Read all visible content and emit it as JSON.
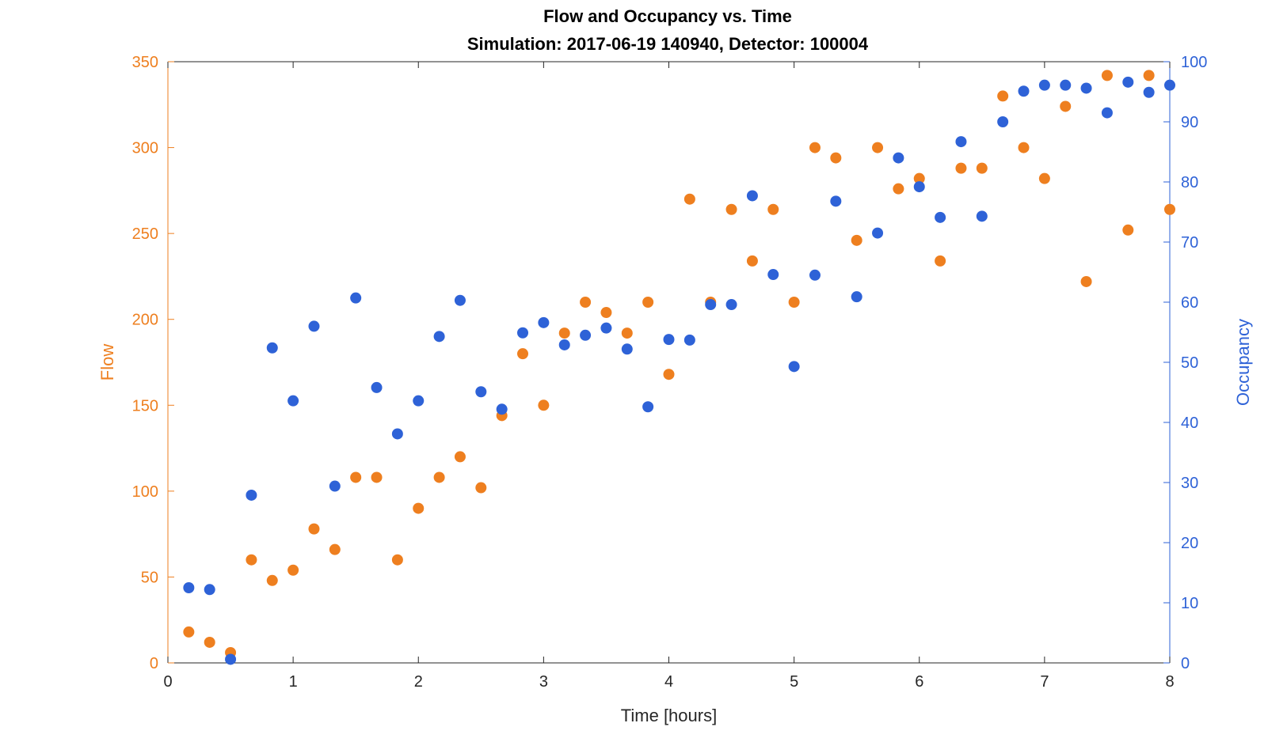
{
  "chart_data": {
    "type": "scatter",
    "title": "Flow and Occupancy vs. Time",
    "subtitle": "Simulation:  2017-06-19 140940,  Detector:  100004",
    "xlabel": "Time [hours]",
    "ylabel_left": "Flow",
    "ylabel_right": "Occupancy",
    "xlim": [
      0,
      8
    ],
    "ylim_left": [
      0,
      350
    ],
    "ylim_right": [
      0,
      100
    ],
    "x_ticks": [
      "0",
      "1",
      "2",
      "3",
      "4",
      "5",
      "6",
      "7",
      "8"
    ],
    "y_left_ticks": [
      "0",
      "50",
      "100",
      "150",
      "200",
      "250",
      "300",
      "350"
    ],
    "y_right_ticks": [
      "0",
      "10",
      "20",
      "30",
      "40",
      "50",
      "60",
      "70",
      "80",
      "90",
      "100"
    ],
    "grid": false,
    "x": [
      0.1667,
      0.3333,
      0.5,
      0.6667,
      0.8333,
      1.0,
      1.1667,
      1.3333,
      1.5,
      1.6667,
      1.8333,
      2.0,
      2.1667,
      2.3333,
      2.5,
      2.6667,
      2.8333,
      3.0,
      3.1667,
      3.3333,
      3.5,
      3.6667,
      3.8333,
      4.0,
      4.1667,
      4.3333,
      4.5,
      4.6667,
      4.8333,
      5.0,
      5.1667,
      5.3333,
      5.5,
      5.6667,
      5.8333,
      6.0,
      6.1667,
      6.3333,
      6.5,
      6.6667,
      6.8333,
      7.0,
      7.1667,
      7.3333,
      7.5,
      7.6667,
      7.8333,
      8.0
    ],
    "series": [
      {
        "axis": "left",
        "color": "#EE7F1F",
        "values": [
          18,
          12,
          6,
          60,
          48,
          54,
          78,
          66,
          108,
          108,
          60,
          90,
          108,
          120,
          102,
          144,
          180,
          150,
          192,
          210,
          204,
          192,
          210,
          168,
          270,
          210,
          264,
          234,
          264,
          210,
          300,
          294,
          246,
          300,
          276,
          282,
          234,
          288,
          288,
          330,
          300,
          282,
          324,
          222,
          342,
          252,
          342,
          264
        ]
      },
      {
        "axis": "right",
        "color": "#2E62D7",
        "values": [
          12.5,
          12.2,
          0.6,
          27.9,
          52.4,
          43.6,
          56.0,
          29.4,
          60.7,
          45.8,
          38.1,
          43.6,
          54.3,
          60.3,
          45.1,
          42.2,
          54.9,
          56.6,
          52.9,
          54.5,
          55.7,
          52.2,
          42.6,
          53.8,
          53.7,
          59.6,
          59.6,
          77.7,
          64.6,
          49.3,
          64.5,
          76.8,
          60.9,
          71.5,
          84.0,
          79.2,
          74.1,
          86.7,
          74.3,
          90.0,
          95.1,
          96.1,
          96.1,
          95.6,
          91.5,
          96.6,
          94.9,
          96.1
        ]
      }
    ]
  }
}
